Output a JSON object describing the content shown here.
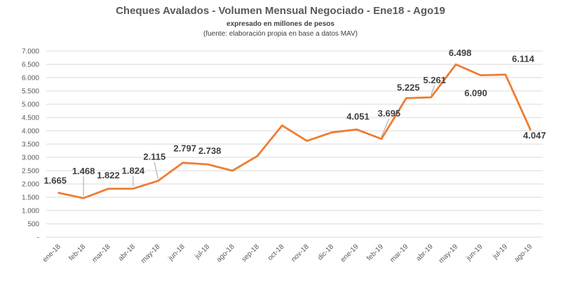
{
  "chart_data": {
    "type": "line",
    "title": "Cheques Avalados - Volumen Mensual Negociado - Ene18 - Ago19",
    "subtitle": "expresado en millones de pesos",
    "source": "(fuente: elaboración propia en base a datos MAV)",
    "xlabel": "",
    "ylabel": "",
    "ylim": [
      0,
      7000
    ],
    "grid": true,
    "color": "#ed7d31",
    "y_ticks": [
      "-",
      "500",
      "1.000",
      "1.500",
      "2.000",
      "2.500",
      "3.000",
      "3.500",
      "4.000",
      "4.500",
      "5.000",
      "5.500",
      "6.000",
      "6.500",
      "7.000"
    ],
    "categories": [
      "ene-18",
      "feb-18",
      "mar-18",
      "abr-18",
      "may-18",
      "jun-18",
      "jul-18",
      "ago-18",
      "sep-18",
      "oct-18",
      "nov-18",
      "dic-18",
      "ene-19",
      "feb-19",
      "mar-19",
      "abr-19",
      "may-19",
      "jun-19",
      "jul-19",
      "ago-19"
    ],
    "series": [
      {
        "name": "Volumen Mensual Negociado",
        "values": [
          1665,
          1468,
          1822,
          1824,
          2115,
          2797,
          2738,
          2500,
          3050,
          4200,
          3620,
          3940,
          4051,
          3695,
          5225,
          5261,
          6498,
          6090,
          6114,
          4047
        ]
      }
    ],
    "data_labels": [
      {
        "index": 0,
        "text": "1.665"
      },
      {
        "index": 1,
        "text": "1.468"
      },
      {
        "index": 2,
        "text": "1.822"
      },
      {
        "index": 3,
        "text": "1.824"
      },
      {
        "index": 4,
        "text": "2.115"
      },
      {
        "index": 5,
        "text": "2.797"
      },
      {
        "index": 6,
        "text": "2.738"
      },
      {
        "index": 12,
        "text": "4.051"
      },
      {
        "index": 13,
        "text": "3.695"
      },
      {
        "index": 14,
        "text": "5.225"
      },
      {
        "index": 15,
        "text": "5.261"
      },
      {
        "index": 16,
        "text": "6.498"
      },
      {
        "index": 17,
        "text": "6.090"
      },
      {
        "index": 18,
        "text": "6.114"
      },
      {
        "index": 19,
        "text": "4.047"
      }
    ]
  }
}
